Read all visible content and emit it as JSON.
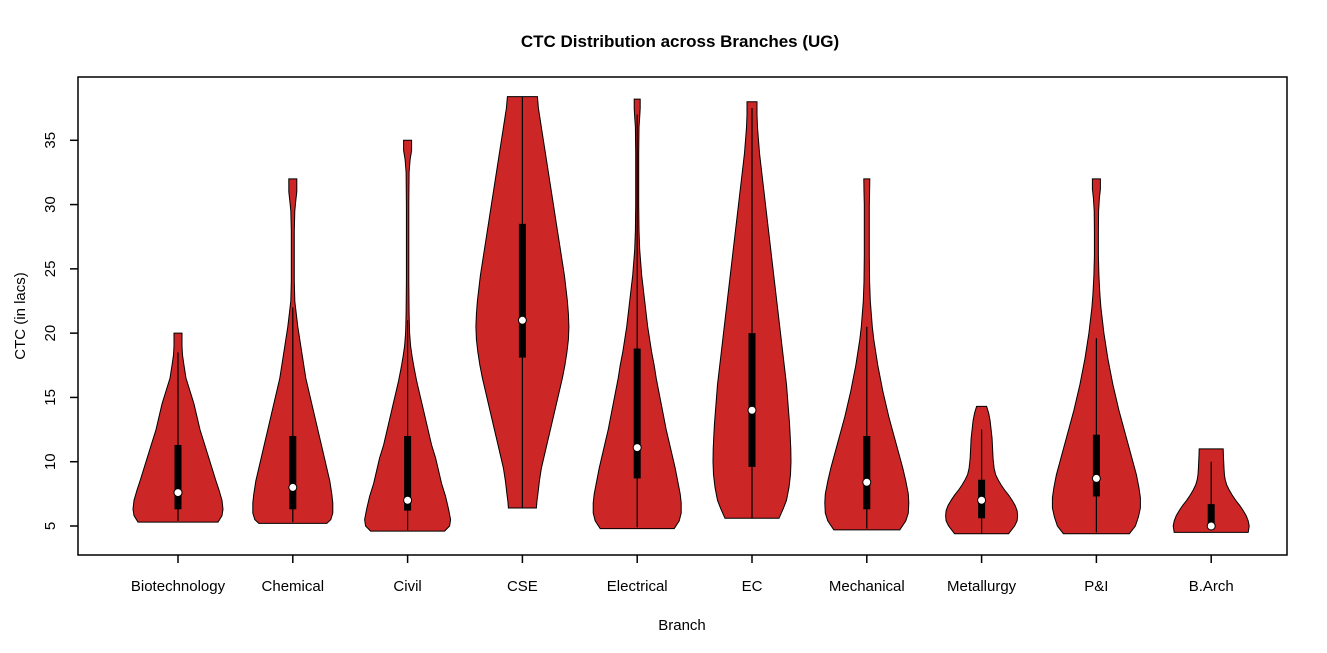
{
  "chart_data": {
    "type": "violin",
    "title": "CTC Distribution across Branches (UG)",
    "xlabel": "Branch",
    "ylabel": "CTC (in lacs)",
    "ylim": [
      2.8,
      39.9
    ],
    "yticks": [
      5,
      10,
      15,
      20,
      25,
      30,
      35
    ],
    "grid": false,
    "legend": "none",
    "categories": [
      "Biotechnology",
      "Chemical",
      "Civil",
      "CSE",
      "Electrical",
      "EC",
      "Mechanical",
      "Metallurgy",
      "P&I",
      "B.Arch"
    ],
    "series": [
      {
        "name": "Biotechnology",
        "median": 7.6,
        "q1": 6.3,
        "q3": 11.3,
        "whisker_low": 5.4,
        "whisker_high": 18.5,
        "violin_min": 5.3,
        "violin_max": 20,
        "density_profile": [
          [
            20,
            4
          ],
          [
            19,
            4
          ],
          [
            18.3,
            4.5
          ],
          [
            17.5,
            6
          ],
          [
            16.5,
            8
          ],
          [
            15.5,
            12
          ],
          [
            14.5,
            16
          ],
          [
            13.5,
            19
          ],
          [
            12.5,
            22
          ],
          [
            11.5,
            26
          ],
          [
            10.5,
            30
          ],
          [
            9.5,
            34
          ],
          [
            8.5,
            38
          ],
          [
            7.8,
            41
          ],
          [
            7,
            44
          ],
          [
            6.3,
            45
          ],
          [
            5.8,
            44
          ],
          [
            5.3,
            40
          ]
        ]
      },
      {
        "name": "Chemical",
        "median": 8,
        "q1": 6.3,
        "q3": 12,
        "whisker_low": 5.3,
        "whisker_high": 22,
        "violin_min": 5.2,
        "violin_max": 32,
        "density_profile": [
          [
            32,
            4
          ],
          [
            31,
            4
          ],
          [
            30.3,
            3
          ],
          [
            29.5,
            2
          ],
          [
            28,
            1.5
          ],
          [
            26,
            1.5
          ],
          [
            24,
            1.5
          ],
          [
            22.5,
            2
          ],
          [
            21.5,
            3.5
          ],
          [
            20.5,
            5
          ],
          [
            19.5,
            7
          ],
          [
            18.5,
            9
          ],
          [
            17.5,
            11
          ],
          [
            16.5,
            13
          ],
          [
            15.5,
            16
          ],
          [
            14.5,
            19
          ],
          [
            13.5,
            22
          ],
          [
            12.5,
            25
          ],
          [
            11.5,
            28
          ],
          [
            10.5,
            31
          ],
          [
            9.5,
            34
          ],
          [
            8.5,
            37
          ],
          [
            7.5,
            39
          ],
          [
            6.8,
            40
          ],
          [
            6,
            40
          ],
          [
            5.5,
            38
          ],
          [
            5.2,
            34
          ]
        ]
      },
      {
        "name": "Civil",
        "median": 7,
        "q1": 6.2,
        "q3": 12,
        "whisker_low": 4.7,
        "whisker_high": 21,
        "violin_min": 4.6,
        "violin_max": 35,
        "density_profile": [
          [
            35,
            4
          ],
          [
            34.2,
            4
          ],
          [
            33.5,
            2.5
          ],
          [
            32.5,
            1.5
          ],
          [
            30,
            1.2
          ],
          [
            27,
            1.2
          ],
          [
            24,
            1.2
          ],
          [
            21.5,
            1.5
          ],
          [
            20,
            2
          ],
          [
            19,
            3
          ],
          [
            18.2,
            4.5
          ],
          [
            17.3,
            6.5
          ],
          [
            16.3,
            9
          ],
          [
            15.3,
            12
          ],
          [
            14.3,
            15
          ],
          [
            13.3,
            18
          ],
          [
            12.3,
            21
          ],
          [
            11.3,
            24
          ],
          [
            10.3,
            28
          ],
          [
            9.3,
            31
          ],
          [
            8.3,
            34
          ],
          [
            7.3,
            38
          ],
          [
            6.3,
            41
          ],
          [
            5.5,
            43
          ],
          [
            5,
            42
          ],
          [
            4.6,
            37
          ]
        ]
      },
      {
        "name": "CSE",
        "median": 21,
        "q1": 18.1,
        "q3": 28.5,
        "whisker_low": 6.4,
        "whisker_high": 38.4,
        "violin_min": 6.4,
        "violin_max": 38.4,
        "density_profile": [
          [
            38.4,
            15
          ],
          [
            37.5,
            16
          ],
          [
            36.5,
            18
          ],
          [
            35.5,
            20
          ],
          [
            34.5,
            22
          ],
          [
            33.5,
            24
          ],
          [
            32.5,
            26
          ],
          [
            31.5,
            28
          ],
          [
            30.5,
            30
          ],
          [
            29.5,
            32
          ],
          [
            28.5,
            34
          ],
          [
            27.5,
            36
          ],
          [
            26.5,
            38
          ],
          [
            25.5,
            40
          ],
          [
            24.5,
            42
          ],
          [
            23.5,
            43.5
          ],
          [
            22.5,
            45
          ],
          [
            21.5,
            46
          ],
          [
            20.5,
            46.5
          ],
          [
            19.5,
            46
          ],
          [
            18.5,
            44.5
          ],
          [
            17.5,
            42.5
          ],
          [
            16.5,
            40
          ],
          [
            15.5,
            37
          ],
          [
            14.5,
            34
          ],
          [
            13.5,
            31
          ],
          [
            12.5,
            28
          ],
          [
            11.5,
            25
          ],
          [
            10.5,
            22
          ],
          [
            9.5,
            19
          ],
          [
            8.5,
            17
          ],
          [
            7.5,
            15.5
          ],
          [
            6.9,
            14.5
          ],
          [
            6.4,
            14
          ]
        ]
      },
      {
        "name": "Electrical",
        "median": 11.1,
        "q1": 8.7,
        "q3": 18.8,
        "whisker_low": 4.9,
        "whisker_high": 37,
        "violin_min": 4.8,
        "violin_max": 38.2,
        "density_profile": [
          [
            38.2,
            3
          ],
          [
            37.5,
            3
          ],
          [
            36.8,
            2.5
          ],
          [
            36,
            1.8
          ],
          [
            34,
            1.5
          ],
          [
            32,
            1.5
          ],
          [
            30,
            1.5
          ],
          [
            28,
            1.8
          ],
          [
            26.5,
            2.5
          ],
          [
            25.5,
            3.5
          ],
          [
            24.5,
            4.5
          ],
          [
            23.5,
            6
          ],
          [
            22.5,
            7.5
          ],
          [
            21.5,
            9
          ],
          [
            20.5,
            10.5
          ],
          [
            19.5,
            12.5
          ],
          [
            18.5,
            14.5
          ],
          [
            17.5,
            17
          ],
          [
            16.5,
            19
          ],
          [
            15.5,
            21.5
          ],
          [
            14.5,
            24
          ],
          [
            13.5,
            26.5
          ],
          [
            12.5,
            29
          ],
          [
            11.5,
            32
          ],
          [
            10.5,
            35
          ],
          [
            9.5,
            38
          ],
          [
            8.5,
            40.5
          ],
          [
            7.5,
            43
          ],
          [
            6.8,
            44
          ],
          [
            6,
            44
          ],
          [
            5.4,
            42
          ],
          [
            4.8,
            37
          ]
        ]
      },
      {
        "name": "EC",
        "median": 14,
        "q1": 9.6,
        "q3": 20,
        "whisker_low": 5.6,
        "whisker_high": 37.5,
        "violin_min": 5.6,
        "violin_max": 38,
        "density_profile": [
          [
            38,
            5
          ],
          [
            37,
            5
          ],
          [
            36,
            5.5
          ],
          [
            35,
            6.5
          ],
          [
            34,
            7.5
          ],
          [
            33,
            9
          ],
          [
            32,
            10.5
          ],
          [
            31,
            12
          ],
          [
            30,
            13.5
          ],
          [
            29,
            15
          ],
          [
            28,
            16.5
          ],
          [
            27,
            18
          ],
          [
            26,
            19.5
          ],
          [
            25,
            21
          ],
          [
            24,
            22.5
          ],
          [
            23,
            24
          ],
          [
            22,
            25.5
          ],
          [
            21,
            27
          ],
          [
            20,
            28.5
          ],
          [
            19,
            30
          ],
          [
            18,
            31.5
          ],
          [
            17,
            33
          ],
          [
            16,
            34.5
          ],
          [
            15,
            35.5
          ],
          [
            14,
            36.5
          ],
          [
            13,
            37.5
          ],
          [
            12,
            38.2
          ],
          [
            11,
            38.8
          ],
          [
            10,
            39
          ],
          [
            9,
            38.5
          ],
          [
            8,
            37
          ],
          [
            7,
            34.5
          ],
          [
            6.3,
            31
          ],
          [
            5.6,
            27
          ]
        ]
      },
      {
        "name": "Mechanical",
        "median": 8.4,
        "q1": 6.3,
        "q3": 12,
        "whisker_low": 4.8,
        "whisker_high": 20.5,
        "violin_min": 4.7,
        "violin_max": 32,
        "density_profile": [
          [
            32,
            3
          ],
          [
            31,
            2.8
          ],
          [
            30,
            2.5
          ],
          [
            28,
            2.5
          ],
          [
            26,
            2.5
          ],
          [
            24,
            2.8
          ],
          [
            22.5,
            3.5
          ],
          [
            21.5,
            4.5
          ],
          [
            20.5,
            5.5
          ],
          [
            19.5,
            7
          ],
          [
            18.5,
            9
          ],
          [
            17.5,
            11
          ],
          [
            16.5,
            13.5
          ],
          [
            15.5,
            16
          ],
          [
            14.5,
            19
          ],
          [
            13.5,
            22
          ],
          [
            12.5,
            25.5
          ],
          [
            11.5,
            29
          ],
          [
            10.5,
            32.5
          ],
          [
            9.5,
            36
          ],
          [
            8.5,
            39
          ],
          [
            7.5,
            41.5
          ],
          [
            6.8,
            42
          ],
          [
            6,
            41.5
          ],
          [
            5.4,
            39
          ],
          [
            4.7,
            33
          ]
        ]
      },
      {
        "name": "Metallurgy",
        "median": 7,
        "q1": 5.6,
        "q3": 8.6,
        "whisker_low": 4.4,
        "whisker_high": 12.5,
        "violin_min": 4.4,
        "violin_max": 14.3,
        "density_profile": [
          [
            14.3,
            5
          ],
          [
            13.8,
            7
          ],
          [
            13.2,
            8.5
          ],
          [
            12.5,
            9.5
          ],
          [
            11.8,
            10.5
          ],
          [
            11,
            11
          ],
          [
            10.2,
            11.5
          ],
          [
            9.5,
            12.5
          ],
          [
            9,
            14
          ],
          [
            8.6,
            16.5
          ],
          [
            8.2,
            19.5
          ],
          [
            7.8,
            23
          ],
          [
            7.4,
            27
          ],
          [
            7,
            30.5
          ],
          [
            6.6,
            33.5
          ],
          [
            6.2,
            35.5
          ],
          [
            5.8,
            36
          ],
          [
            5.4,
            35.5
          ],
          [
            5,
            33
          ],
          [
            4.4,
            27
          ]
        ]
      },
      {
        "name": "P&I",
        "median": 8.7,
        "q1": 7.3,
        "q3": 12.1,
        "whisker_low": 4.5,
        "whisker_high": 19.6,
        "violin_min": 4.4,
        "violin_max": 32,
        "density_profile": [
          [
            32,
            4
          ],
          [
            31.2,
            4
          ],
          [
            30.5,
            3
          ],
          [
            29.5,
            2.2
          ],
          [
            28,
            2
          ],
          [
            26,
            2
          ],
          [
            24.5,
            2.5
          ],
          [
            23,
            3.5
          ],
          [
            22,
            4.5
          ],
          [
            21,
            6
          ],
          [
            20,
            7.5
          ],
          [
            19,
            9.5
          ],
          [
            18,
            11.5
          ],
          [
            17,
            14
          ],
          [
            16,
            16.5
          ],
          [
            15,
            19.5
          ],
          [
            14,
            22.5
          ],
          [
            13,
            26
          ],
          [
            12,
            29.5
          ],
          [
            11,
            33
          ],
          [
            10,
            36.5
          ],
          [
            9,
            40
          ],
          [
            8,
            42.5
          ],
          [
            7.2,
            44
          ],
          [
            6.4,
            44
          ],
          [
            5.7,
            42
          ],
          [
            5,
            39
          ],
          [
            4.4,
            33
          ]
        ]
      },
      {
        "name": "B.Arch",
        "median": 5,
        "q1": 5,
        "q3": 6.7,
        "whisker_low": 4.8,
        "whisker_high": 10,
        "violin_min": 4.5,
        "violin_max": 11,
        "density_profile": [
          [
            11,
            12
          ],
          [
            10.5,
            12.2
          ],
          [
            10,
            12.5
          ],
          [
            9.5,
            12.8
          ],
          [
            9,
            13.2
          ],
          [
            8.6,
            14
          ],
          [
            8.2,
            15.5
          ],
          [
            7.8,
            18
          ],
          [
            7.4,
            21
          ],
          [
            7,
            24.5
          ],
          [
            6.6,
            28.5
          ],
          [
            6.2,
            32
          ],
          [
            5.8,
            35
          ],
          [
            5.4,
            37
          ],
          [
            5,
            38
          ],
          [
            4.5,
            37
          ]
        ]
      }
    ],
    "colors": {
      "violin_fill": "#cc2626",
      "violin_outline": "#000000",
      "box": "#000000",
      "median_dot": "#ffffff",
      "text": "#000000",
      "background": "#ffffff"
    }
  }
}
